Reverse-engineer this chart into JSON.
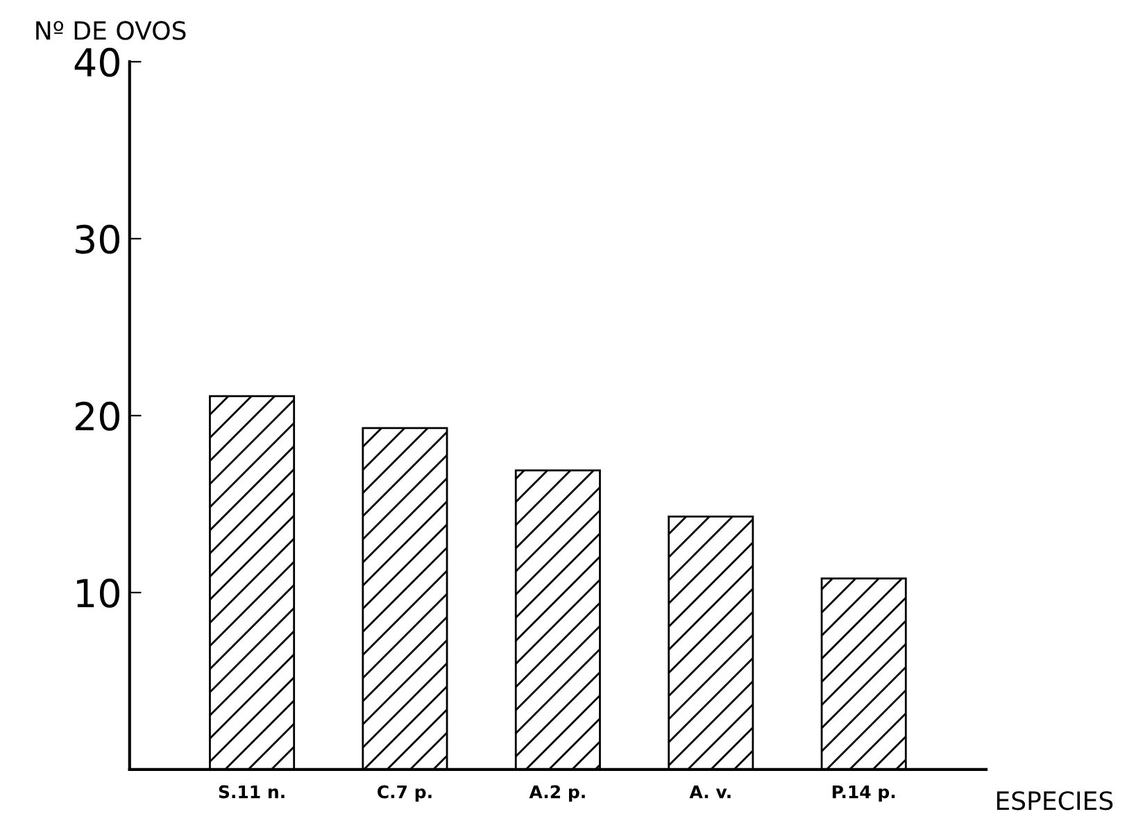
{
  "chart_data": {
    "type": "bar",
    "ylabel": "Nº DE OVOS",
    "xlabel": "ESPECIES",
    "categories": [
      "S.11 n.",
      "C.7 p.",
      "A.2 p.",
      "A. v.",
      "P.14 p."
    ],
    "values": [
      21.1,
      19.3,
      16.9,
      14.3,
      10.8
    ],
    "color": "#000000",
    "ylim": [
      0,
      40
    ],
    "yticks": [
      10,
      20,
      30,
      40
    ],
    "grid": false
  }
}
